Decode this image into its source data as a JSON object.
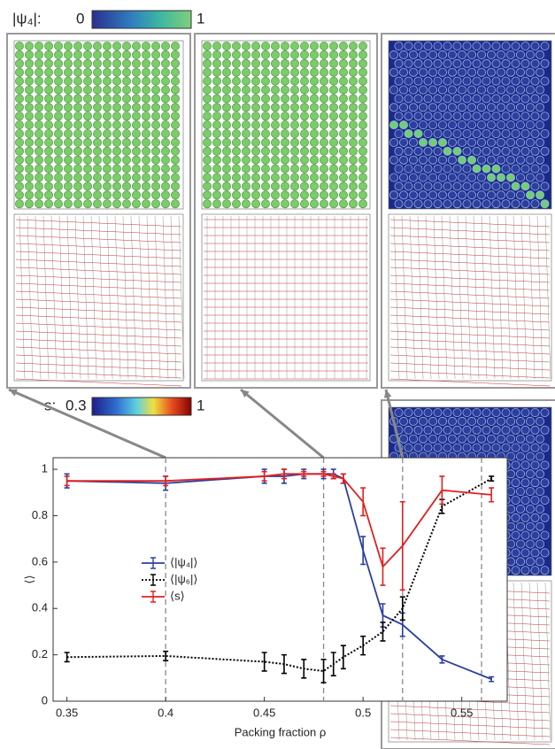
{
  "colorbars": [
    {
      "label": "|ψ₄|:",
      "min": 0,
      "max": 1
    },
    {
      "label": "s:",
      "min": 0.3,
      "max": 1
    }
  ],
  "chart_data": {
    "type": "line",
    "xlabel": "Packing fraction ρ",
    "ylabel": "⟨⟩",
    "x": [
      0.35,
      0.4,
      0.45,
      0.46,
      0.47,
      0.48,
      0.485,
      0.49,
      0.5,
      0.51,
      0.52,
      0.54,
      0.565
    ],
    "series": [
      {
        "name": "⟨|ψ₄|⟩",
        "color": "#2b3fa0",
        "style": "solid",
        "values": [
          0.95,
          0.94,
          0.97,
          0.97,
          0.98,
          0.98,
          0.98,
          0.96,
          0.65,
          0.37,
          0.33,
          0.18,
          0.095
        ],
        "errors": [
          0.03,
          0.03,
          0.03,
          0.03,
          0.02,
          0.02,
          0.02,
          0.02,
          0.06,
          0.05,
          0.05,
          0.015,
          0.01
        ]
      },
      {
        "name": "⟨|ψ₆|⟩",
        "color": "#000000",
        "style": "dotted",
        "values": [
          0.19,
          0.195,
          0.17,
          0.16,
          0.14,
          0.13,
          0.16,
          0.19,
          0.24,
          0.3,
          0.4,
          0.84,
          0.96
        ],
        "errors": [
          0.02,
          0.02,
          0.04,
          0.04,
          0.04,
          0.05,
          0.05,
          0.05,
          0.04,
          0.04,
          0.05,
          0.03,
          0.01
        ]
      },
      {
        "name": "⟨s⟩",
        "color": "#e02020",
        "style": "solid",
        "values": [
          0.95,
          0.95,
          0.97,
          0.98,
          0.98,
          0.98,
          0.97,
          0.96,
          0.86,
          0.58,
          0.67,
          0.91,
          0.89
        ],
        "errors": [
          0.02,
          0.02,
          0.02,
          0.02,
          0.01,
          0.01,
          0.01,
          0.02,
          0.06,
          0.08,
          0.19,
          0.06,
          0.03
        ]
      }
    ],
    "markers": [
      0.4,
      0.48,
      0.52,
      0.56
    ],
    "xlim": [
      0.343,
      0.573
    ],
    "ylim": [
      0,
      1.05
    ],
    "xticks": [
      0.35,
      0.4,
      0.45,
      0.5,
      0.55
    ],
    "yticks": [
      0,
      0.2,
      0.4,
      0.6,
      0.8,
      1
    ]
  }
}
